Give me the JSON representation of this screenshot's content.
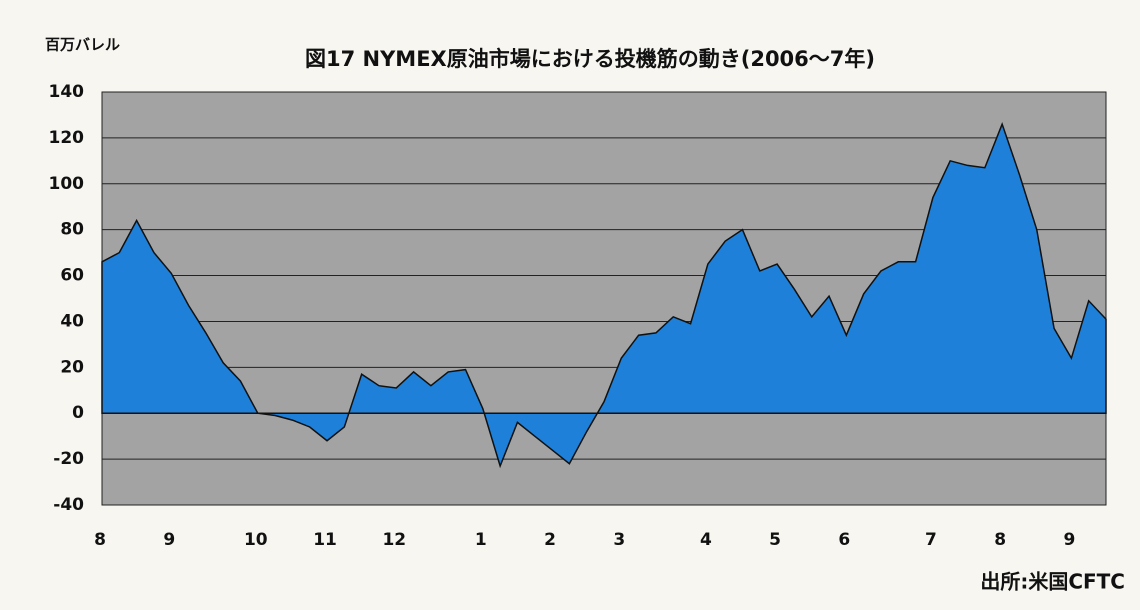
{
  "chart_data": {
    "type": "area",
    "title": "図17 NYMEX原油市場における投機筋の動き(2006～7年)",
    "y_label": "百万バレル",
    "source": "出所:米国CFTC",
    "categories": [
      "8",
      null,
      null,
      null,
      "9",
      null,
      null,
      null,
      null,
      "10",
      null,
      null,
      null,
      "11",
      null,
      null,
      null,
      "12",
      null,
      null,
      null,
      null,
      "1",
      null,
      null,
      null,
      "2",
      null,
      null,
      null,
      "3",
      null,
      null,
      null,
      null,
      "4",
      null,
      null,
      null,
      "5",
      null,
      null,
      null,
      "6",
      null,
      null,
      null,
      null,
      "7",
      null,
      null,
      null,
      "8",
      null,
      null,
      null,
      "9",
      null,
      null
    ],
    "values": [
      66,
      70,
      84,
      70,
      61,
      47,
      35,
      22,
      14,
      0,
      -1,
      -3,
      -6,
      -12,
      -6,
      17,
      12,
      11,
      18,
      12,
      18,
      19,
      2,
      -23,
      -4,
      -10,
      -16,
      -22,
      -8,
      5,
      24,
      34,
      35,
      42,
      39,
      65,
      75,
      80,
      62,
      65,
      54,
      42,
      51,
      34,
      52,
      62,
      66,
      66,
      94,
      110,
      108,
      107,
      126,
      104,
      80,
      37,
      24,
      49,
      41
    ],
    "color": "#1e80d8",
    "plot_background": "#a3a3a3",
    "ylim": [
      -40,
      140
    ],
    "yticks": [
      -40,
      -20,
      0,
      20,
      40,
      60,
      80,
      100,
      120,
      140
    ],
    "grid": true
  }
}
